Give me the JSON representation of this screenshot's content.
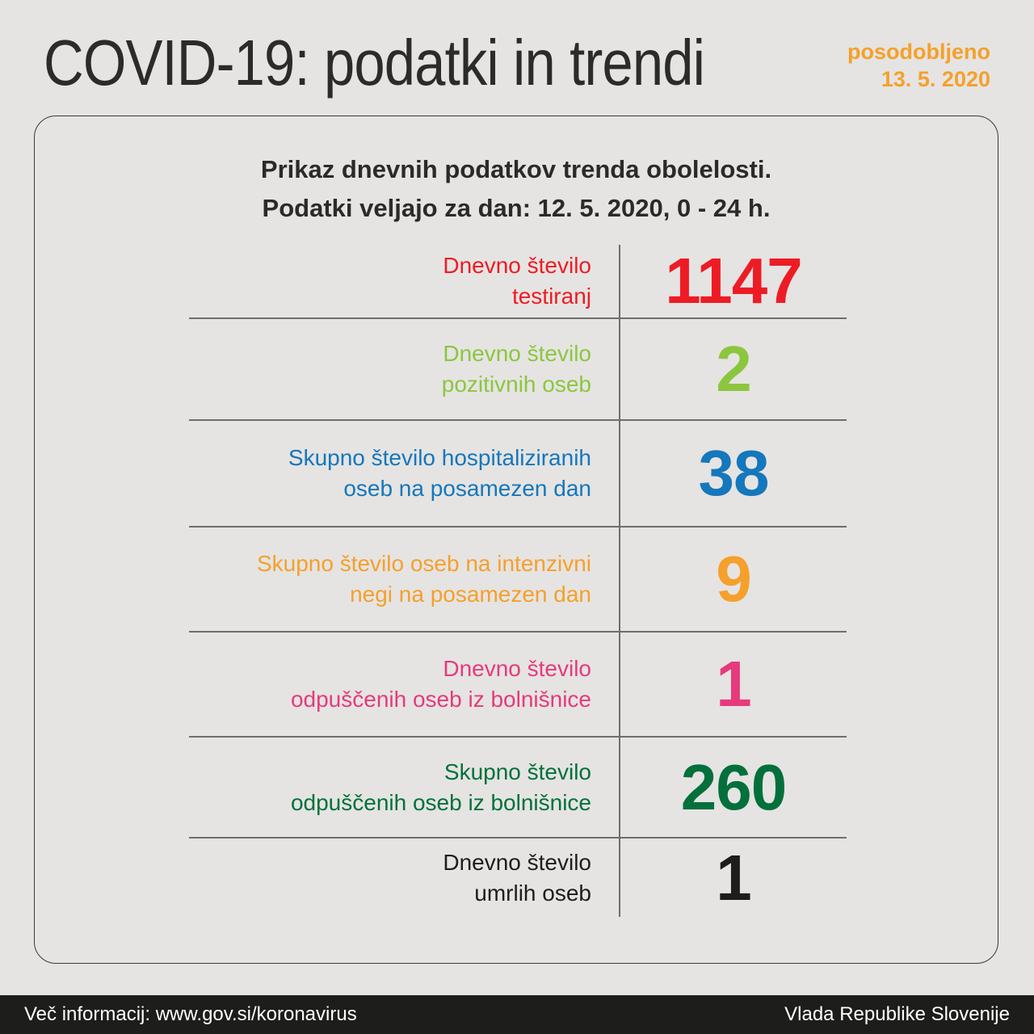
{
  "header": {
    "title": "COVID-19: podatki in trendi",
    "updated_label": "posodobljeno",
    "updated_date": "13. 5. 2020"
  },
  "card": {
    "heading_line1": "Prikaz dnevnih podatkov trenda obolelosti.",
    "heading_line2": "Podatki veljajo za dan: 12. 5. 2020, 0 - 24 h.",
    "rows": [
      {
        "label_line1": "Dnevno število",
        "label_line2": "testiranj",
        "value": "1147",
        "color": "#ed1c24"
      },
      {
        "label_line1": "Dnevno število",
        "label_line2": "pozitivnih oseb",
        "value": "2",
        "color": "#8cc63f"
      },
      {
        "label_line1": "Skupno število hospitaliziranih",
        "label_line2": "oseb na posamezen dan",
        "value": "38",
        "color": "#1577bc"
      },
      {
        "label_line1": "Skupno število oseb na intenzivni",
        "label_line2": "negi na posamezen dan",
        "value": "9",
        "color": "#f5a02b"
      },
      {
        "label_line1": "Dnevno število",
        "label_line2": "odpuščenih oseb iz bolnišnice",
        "value": "1",
        "color": "#e63a7d"
      },
      {
        "label_line1": "Skupno število",
        "label_line2": "odpuščenih oseb iz bolnišnice",
        "value": "260",
        "color": "#03703c"
      },
      {
        "label_line1": "Dnevno število",
        "label_line2": "umrlih oseb",
        "value": "1",
        "color": "#1d1d1b"
      }
    ]
  },
  "footer": {
    "left": "Več informacij: www.gov.si/koronavirus",
    "right": "Vlada Republike Slovenije"
  },
  "colors": {
    "accent_orange": "#f5a02b",
    "title_text": "#2b2b2a",
    "divider_gray": "#6e6e6e",
    "footer_bg": "#1d1d1b",
    "page_bg": "#e5e4e2"
  },
  "chart_data": {
    "type": "table",
    "title": "Prikaz dnevnih podatkov trenda obolelosti. Podatki veljajo za dan: 12. 5. 2020, 0 - 24 h.",
    "categories": [
      "Dnevno število testiranj",
      "Dnevno število pozitivnih oseb",
      "Skupno število hospitaliziranih oseb na posamezen dan",
      "Skupno število oseb na intenzivni negi na posamezen dan",
      "Dnevno število odpuščenih oseb iz bolnišnice",
      "Skupno število odpuščenih oseb iz bolnišnice",
      "Dnevno število umrlih oseb"
    ],
    "values": [
      1147,
      2,
      38,
      9,
      1,
      260,
      1
    ],
    "updated": "13. 5. 2020",
    "legend_position": "none",
    "grid": "row-dividers"
  }
}
